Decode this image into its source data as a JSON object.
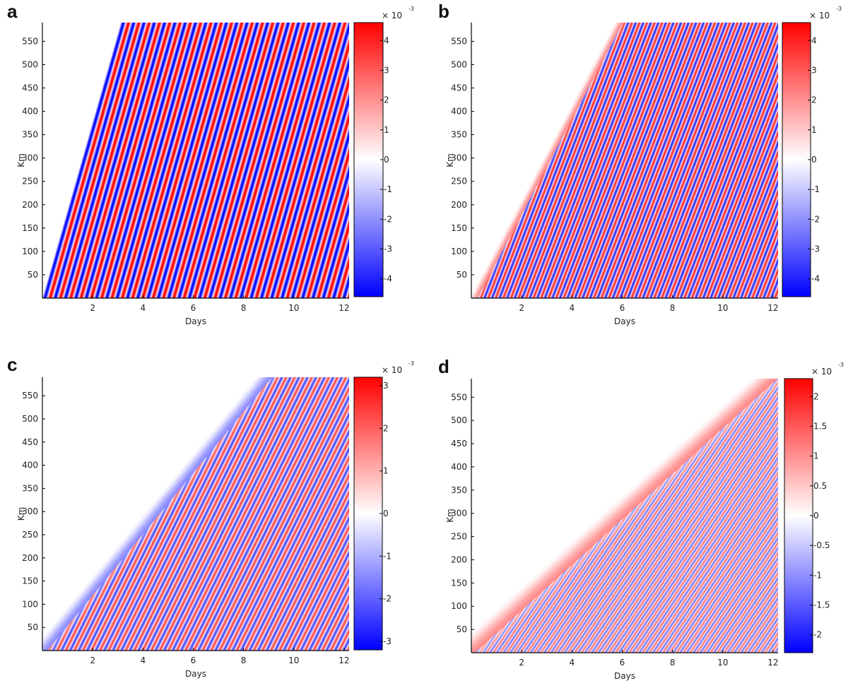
{
  "figure": {
    "panels": [
      "a",
      "b",
      "c",
      "d"
    ]
  },
  "colors": {
    "positive": "#ff0000",
    "neutral": "#ffffff",
    "negative": "#0000ff",
    "axis": "#000000"
  },
  "chart_data": [
    {
      "type": "heatmap",
      "panel": "a",
      "title": "",
      "xlabel": "Days",
      "ylabel": "Km",
      "xlim": [
        0,
        12.2
      ],
      "ylim": [
        0,
        590
      ],
      "xticks": [
        2,
        4,
        6,
        8,
        10,
        12
      ],
      "yticks": [
        50,
        100,
        150,
        200,
        250,
        300,
        350,
        400,
        450,
        500,
        550
      ],
      "colorbar": {
        "ticks": [
          4,
          3,
          2,
          1,
          0,
          -1,
          -2,
          -3,
          -4
        ],
        "tick_labels": [
          "4",
          "3",
          "2",
          "1",
          "0",
          "-1",
          "-2",
          "-3",
          "-4"
        ],
        "clim": [
          -4.6,
          4.6
        ],
        "multiplier": "× 10",
        "exponent": "-3"
      },
      "wavefront": {
        "x0": 0.0,
        "slope_km_per_day": 189,
        "front_width_km": 0
      },
      "pattern": {
        "color_period_days": 0.41,
        "stripe_slope_km_per_day": 189,
        "start_sign": -1,
        "amplitude": 1.0
      },
      "legend": "none",
      "grid": false
    },
    {
      "type": "heatmap",
      "panel": "b",
      "title": "",
      "xlabel": "Days",
      "ylabel": "Km",
      "xlim": [
        0,
        12.2
      ],
      "ylim": [
        0,
        590
      ],
      "xticks": [
        2,
        4,
        6,
        8,
        10,
        12
      ],
      "yticks": [
        50,
        100,
        150,
        200,
        250,
        300,
        350,
        400,
        450,
        500,
        550
      ],
      "colorbar": {
        "ticks": [
          4,
          3,
          2,
          1,
          0,
          -1,
          -2,
          -3,
          -4
        ],
        "tick_labels": [
          "4",
          "3",
          "2",
          "1",
          "0",
          "-1",
          "-2",
          "-3",
          "-4"
        ],
        "clim": [
          -4.6,
          4.6
        ],
        "multiplier": "× 10",
        "exponent": "-3"
      },
      "wavefront": {
        "x0": 0.25,
        "slope_km_per_day": 102,
        "front_width_km": 35
      },
      "pattern": {
        "color_period_days": 0.3,
        "stripe_slope_km_per_day": 140,
        "start_sign": 1,
        "amplitude": 0.85
      },
      "legend": "none",
      "grid": false
    },
    {
      "type": "heatmap",
      "panel": "c",
      "title": "",
      "xlabel": "Days",
      "ylabel": "Km",
      "xlim": [
        0,
        12.2
      ],
      "ylim": [
        0,
        590
      ],
      "xticks": [
        2,
        4,
        6,
        8,
        10,
        12
      ],
      "yticks": [
        50,
        100,
        150,
        200,
        250,
        300,
        350,
        400,
        450,
        500,
        550
      ],
      "colorbar": {
        "ticks": [
          3,
          2,
          1,
          0,
          -1,
          -2,
          -3
        ],
        "tick_labels": [
          "3",
          "2",
          "1",
          "0",
          "-1",
          "-2",
          "-3"
        ],
        "clim": [
          -3.2,
          3.2
        ],
        "multiplier": "× 10",
        "exponent": "-3"
      },
      "wavefront": {
        "x0": 0.2,
        "slope_km_per_day": 66,
        "front_width_km": 45
      },
      "pattern": {
        "color_period_days": 0.34,
        "stripe_slope_km_per_day": 110,
        "start_sign": -1,
        "amplitude": 0.72
      },
      "legend": "none",
      "grid": false
    },
    {
      "type": "heatmap",
      "panel": "d",
      "title": "",
      "xlabel": "Days",
      "ylabel": "Km",
      "xlim": [
        0,
        12.2
      ],
      "ylim": [
        0,
        590
      ],
      "xticks": [
        2,
        4,
        6,
        8,
        10,
        12
      ],
      "yticks": [
        50,
        100,
        150,
        200,
        250,
        300,
        350,
        400,
        450,
        500,
        550
      ],
      "colorbar": {
        "ticks": [
          2,
          1.5,
          1,
          0.5,
          0,
          -0.5,
          -1,
          -1.5,
          -2
        ],
        "tick_labels": [
          "2",
          "1.5",
          "1",
          "0.5",
          "0",
          "-0.5",
          "-1",
          "-1.5",
          "-2"
        ],
        "clim": [
          -2.3,
          2.3
        ],
        "multiplier": "× 10",
        "exponent": "-3"
      },
      "wavefront": {
        "x0": 0.15,
        "slope_km_per_day": 49,
        "front_width_km": 55
      },
      "pattern": {
        "color_period_days": 0.27,
        "stripe_slope_km_per_day": 80,
        "start_sign": 1,
        "amplitude": 0.55
      },
      "legend": "none",
      "grid": false
    }
  ]
}
